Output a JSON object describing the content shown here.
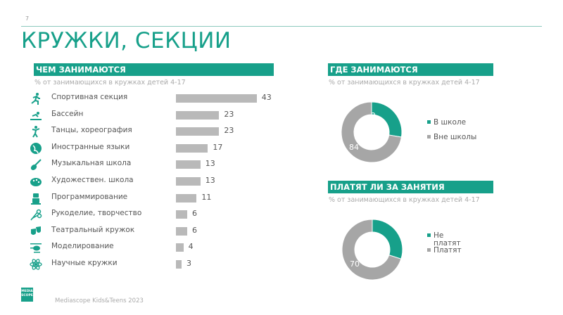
{
  "page": {
    "number": "7",
    "title": "КРУЖКИ, СЕКЦИИ",
    "footer": "Mediascope Kids&Teens 2023",
    "logo_text": [
      "MEDIA",
      "SCOPE"
    ]
  },
  "colors": {
    "accent": "#17a08a",
    "bar": "#b9b9b9",
    "donut_gray": "#a6a6a6"
  },
  "left_panel": {
    "header": "ЧЕМ ЗАНИМАЮТСЯ",
    "subtitle": "% от занимающихся в кружках детей 4-17",
    "items": [
      {
        "icon": "running-icon",
        "label": "Спортивная секция",
        "value": 43
      },
      {
        "icon": "swimming-icon",
        "label": "Бассейн",
        "value": 23
      },
      {
        "icon": "dancing-icon",
        "label": "Танцы, хореография",
        "value": 23
      },
      {
        "icon": "globe-icon",
        "label": "Иностранные языки",
        "value": 17
      },
      {
        "icon": "guitar-icon",
        "label": "Музыкальная школа",
        "value": 13
      },
      {
        "icon": "palette-icon",
        "label": "Художествен. школа",
        "value": 13
      },
      {
        "icon": "robot-icon",
        "label": "Программирование",
        "value": 11
      },
      {
        "icon": "scissors-icon",
        "label": "Рукоделие, творчество",
        "value": 6
      },
      {
        "icon": "theatre-masks-icon",
        "label": "Театральный кружок",
        "value": 6
      },
      {
        "icon": "helicopter-icon",
        "label": "Моделирование",
        "value": 4
      },
      {
        "icon": "atom-icon",
        "label": "Научные кружки",
        "value": 3
      }
    ]
  },
  "where_panel": {
    "header": "ГДЕ ЗАНИМАЮТСЯ",
    "subtitle": "% от занимающихся в кружках детей 4-17",
    "segments": [
      {
        "label": "В школе",
        "value": 32,
        "color": "#17a08a"
      },
      {
        "label": "Вне школы",
        "value": 84,
        "color": "#a6a6a6"
      }
    ]
  },
  "pay_panel": {
    "header": "ПЛАТЯТ ЛИ ЗА ЗАНЯТИЯ",
    "subtitle": "% от занимающихся в кружках детей 4-17",
    "segments": [
      {
        "label": "Не платят",
        "label_lines": [
          "Не",
          "платят"
        ],
        "value": 30,
        "color": "#17a08a"
      },
      {
        "label": "Платят",
        "value": 70,
        "color": "#a6a6a6"
      }
    ]
  },
  "chart_data": [
    {
      "type": "bar",
      "orientation": "horizontal",
      "title": "ЧЕМ ЗАНИМАЮТСЯ",
      "subtitle": "% от занимающихся в кружках детей 4-17",
      "categories": [
        "Спортивная секция",
        "Бассейн",
        "Танцы, хореография",
        "Иностранные языки",
        "Музыкальная школа",
        "Художествен. школа",
        "Программирование",
        "Рукоделие, творчество",
        "Театральный кружок",
        "Моделирование",
        "Научные кружки"
      ],
      "values": [
        43,
        23,
        23,
        17,
        13,
        13,
        11,
        6,
        6,
        4,
        3
      ],
      "data_labels": true,
      "grid": false,
      "xlabel": "",
      "ylabel": ""
    },
    {
      "type": "pie",
      "variant": "donut",
      "title": "ГДЕ ЗАНИМАЮТСЯ",
      "subtitle": "% от занимающихся в кружках детей 4-17",
      "categories": [
        "В школе",
        "Вне школы"
      ],
      "values": [
        32,
        84
      ],
      "legend_position": "right"
    },
    {
      "type": "pie",
      "variant": "donut",
      "title": "ПЛАТЯТ ЛИ ЗА ЗАНЯТИЯ",
      "subtitle": "% от занимающихся в кружках детей 4-17",
      "categories": [
        "Не платят",
        "Платят"
      ],
      "values": [
        30,
        70
      ],
      "legend_position": "right"
    }
  ]
}
